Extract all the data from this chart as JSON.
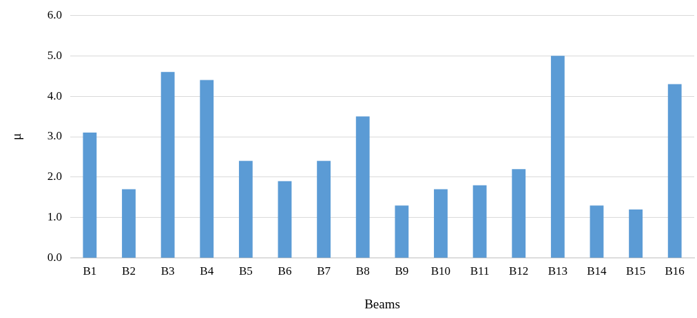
{
  "chart_data": {
    "type": "bar",
    "xlabel": "Beams",
    "ylabel": "μ",
    "categories": [
      "B1",
      "B2",
      "B3",
      "B4",
      "B5",
      "B6",
      "B7",
      "B8",
      "B9",
      "B10",
      "B11",
      "B12",
      "B13",
      "B14",
      "B15",
      "B16"
    ],
    "values": [
      3.1,
      1.7,
      4.6,
      4.4,
      2.4,
      1.9,
      2.4,
      3.5,
      1.3,
      1.7,
      1.8,
      2.2,
      5.0,
      1.3,
      1.2,
      4.3
    ],
    "color": "#5b9bd5",
    "ylim": [
      0,
      6
    ],
    "yticks": [
      {
        "value": 0,
        "label": "0.0"
      },
      {
        "value": 1,
        "label": "1.0"
      },
      {
        "value": 2,
        "label": "2.0"
      },
      {
        "value": 3,
        "label": "3.0"
      },
      {
        "value": 4,
        "label": "4.0"
      },
      {
        "value": 5,
        "label": "5.0"
      },
      {
        "value": 6,
        "label": "6.0"
      }
    ],
    "grid": "y"
  }
}
